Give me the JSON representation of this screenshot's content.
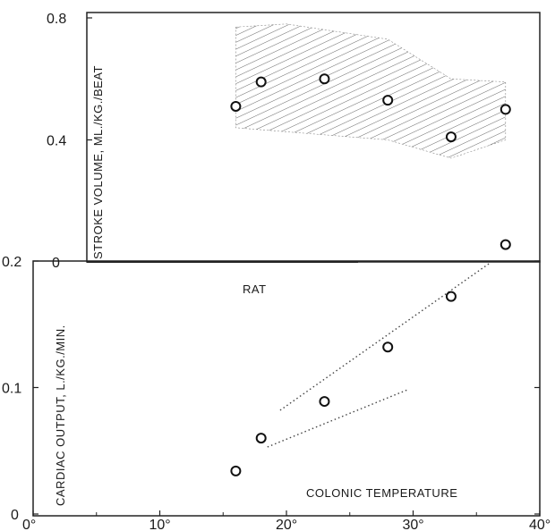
{
  "chart_data": [
    {
      "type": "scatter",
      "ylabel": "STROKE VOLUME, ML./KG./BEAT",
      "xlabel": "RAT",
      "ylim": [
        0,
        0.8
      ],
      "yticks": [
        "0.8",
        "0.4",
        "0"
      ],
      "band": "hatched",
      "series": [
        {
          "x": [
            16,
            18,
            23,
            28,
            33,
            37.3
          ],
          "y": [
            0.51,
            0.59,
            0.6,
            0.53,
            0.41,
            0.5
          ]
        }
      ],
      "band_upper": {
        "x": [
          16,
          20,
          28,
          33,
          37.3
        ],
        "y": [
          0.77,
          0.78,
          0.73,
          0.6,
          0.59
        ]
      },
      "band_lower": {
        "x": [
          16,
          28,
          33,
          37.3
        ],
        "y": [
          0.44,
          0.4,
          0.34,
          0.4
        ]
      }
    },
    {
      "type": "scatter",
      "ylabel": "CARDIAC OUTPUT, L./KG./MIN.",
      "xlabel": "COLONIC TEMPERATURE",
      "xlim": [
        0,
        40
      ],
      "ylim": [
        0,
        0.2
      ],
      "xticks": [
        "0°",
        "10°",
        "20°",
        "30°",
        "40°"
      ],
      "yticks": [
        "0.2",
        "0.1",
        "0"
      ],
      "series": [
        {
          "x": [
            16,
            18,
            23,
            28,
            33,
            37.3
          ],
          "y": [
            0.034,
            0.06,
            0.089,
            0.132,
            0.172,
            0.213
          ]
        }
      ],
      "dotted_lines": [
        {
          "x": [
            19.5,
            36
          ],
          "y": [
            0.082,
            0.198
          ]
        },
        {
          "x": [
            18.5,
            29.5
          ],
          "y": [
            0.053,
            0.098
          ]
        }
      ]
    }
  ]
}
